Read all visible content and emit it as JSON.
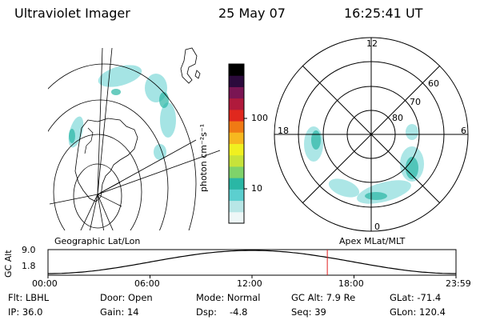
{
  "header": {
    "title": "Ultraviolet Imager",
    "date": "25 May 07",
    "time": "16:25:41 UT"
  },
  "colorbar": {
    "label": "photon cm⁻²s⁻¹",
    "ticks": [
      "100",
      "10"
    ],
    "scale": "log",
    "colors": [
      "#eef7f7",
      "#b8e6e6",
      "#5ccfcf",
      "#2ab7a5",
      "#7fd36a",
      "#c7e33a",
      "#f0f020",
      "#f7b81f",
      "#f07a14",
      "#e0281e",
      "#b01a3c",
      "#7a1553",
      "#2b0a3c",
      "#000000"
    ]
  },
  "left_panel": {
    "label": "Geographic Lat/Lon"
  },
  "right_panel": {
    "label": "Apex MLat/MLT",
    "mlt_labels": [
      "12",
      "18",
      "6",
      "0"
    ],
    "mlat_labels": [
      "60",
      "70",
      "80"
    ]
  },
  "timeline": {
    "ylabel": "GC Alt",
    "ytick_top": "9.0",
    "ytick_bottom": "1.8",
    "xticks": [
      "00:00",
      "06:00",
      "12:00",
      "18:00",
      "23:59"
    ],
    "current_time_hours": 16.43,
    "marker_color": "#e02020"
  },
  "info": {
    "flt": "Flt: LBHL",
    "ip": "IP: 36.0",
    "door": "Door: Open",
    "gain": "Gain: 14",
    "mode": "Mode: Normal",
    "dsp_label": "Dsp:",
    "dsp_value": "-4.8",
    "gcalt": "GC Alt: 7.9 Re",
    "seq": "Seq: 39",
    "glat": "GLat: -71.4",
    "glon": "GLon: 120.4"
  }
}
